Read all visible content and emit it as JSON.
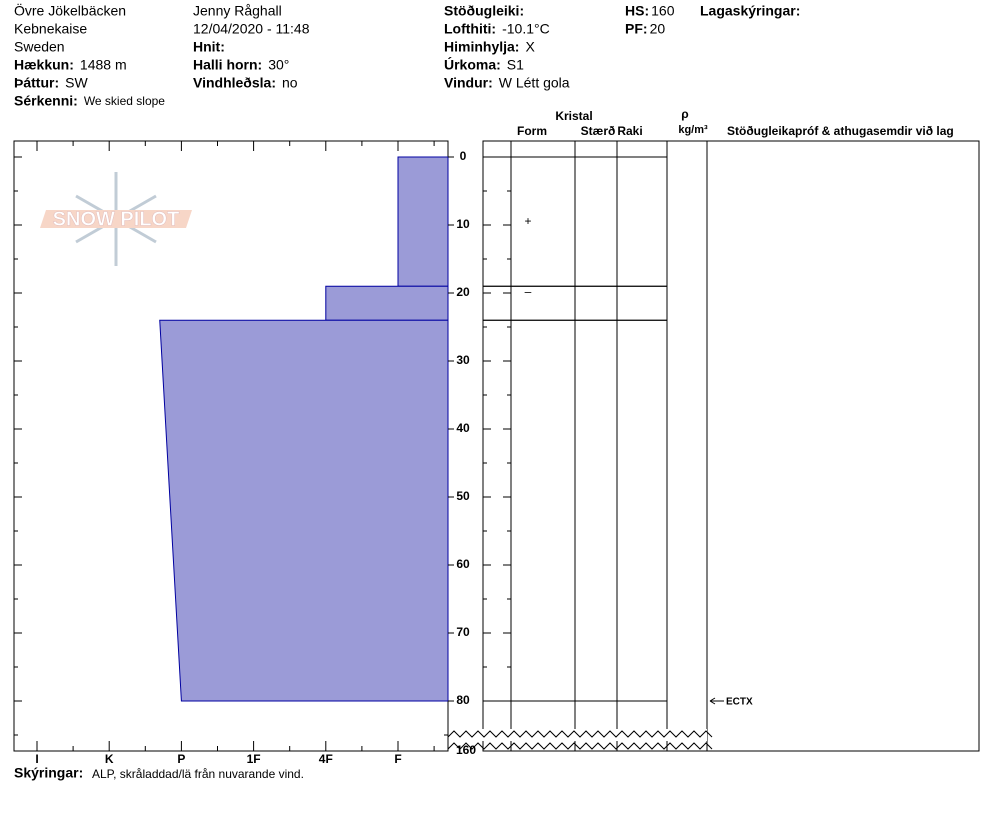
{
  "header": {
    "columns": [
      [
        {
          "text": "Övre Jökelbäcken"
        },
        {
          "text": "Kebnekaise"
        },
        {
          "text": "Sweden"
        },
        {
          "label": "Hækkun:",
          "value": "1488 m"
        },
        {
          "label": "Þáttur:",
          "value": "SW"
        },
        {
          "label": "Sérkenni:",
          "value": "We skied slope"
        }
      ],
      [
        {
          "text": "Jenny Råghall"
        },
        {
          "text": "12/04/2020 - 11:48"
        },
        {
          "label": "Hnit:"
        },
        {
          "label": "Halli horn:",
          "value": "30°"
        },
        {
          "label": "Vindhleðsla:",
          "value": "no"
        }
      ],
      [
        {
          "label": "Stöðugleiki:"
        },
        {
          "label": "Lofthiti:",
          "value": "-10.1°C"
        },
        {
          "label": "Himinhylja:",
          "value": "X"
        },
        {
          "label": "Úrkoma:",
          "value": "S1"
        },
        {
          "label": "Vindur:",
          "value": "W Létt gola"
        }
      ],
      [
        {
          "label": "HS:",
          "value": "160"
        },
        {
          "label": "PF:",
          "value": "20"
        }
      ],
      [
        {
          "label": "Lagaskýringar:"
        }
      ]
    ]
  },
  "logo": "SNOW PILOT",
  "profile": {
    "hardness_labels": [
      "I",
      "K",
      "P",
      "1F",
      "4F",
      "F"
    ],
    "depth_ticks": [
      0,
      10,
      20,
      30,
      40,
      50,
      60,
      70,
      80
    ],
    "depth_bottom_label": 160,
    "layers": [
      {
        "depth_top": 0,
        "depth_bottom": 19,
        "hardness_top": 5,
        "hardness_bottom": 5,
        "form": "+"
      },
      {
        "depth_top": 19,
        "depth_bottom": 24,
        "hardness_top": 4,
        "hardness_bottom": 4,
        "form": "–"
      },
      {
        "depth_top": 24,
        "depth_bottom": 80,
        "hardness_top": 1.7,
        "hardness_bottom": 2
      }
    ],
    "tests": [
      {
        "depth": 80,
        "label": "ECTX"
      }
    ]
  },
  "table": {
    "crystal": "Kristal",
    "form": "Form",
    "size": "Stærð",
    "moisture": "Raki",
    "rho": "ρ",
    "density_unit": "kg/m³",
    "comments": "Stöðugleikapróf & athugasemdir við lag"
  },
  "footer": {
    "label": "Skýringar:",
    "value": "ALP, skråladdad/lä från nuvarande vind."
  }
}
